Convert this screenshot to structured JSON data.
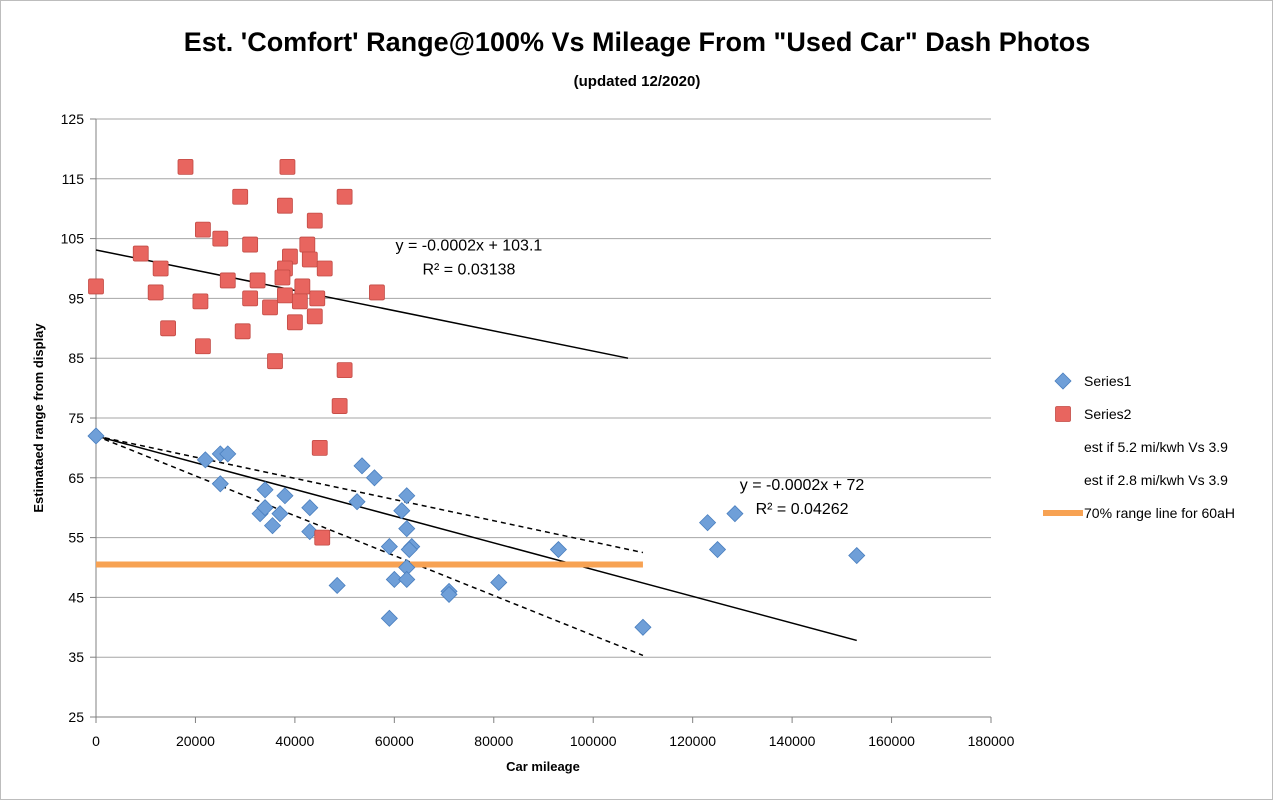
{
  "chart_data": {
    "type": "scatter",
    "title": "Est. 'Comfort' Range@100% Vs Mileage From \"Used Car\" Dash Photos",
    "subtitle": "(updated 12/2020)",
    "xlabel": "Car mileage",
    "ylabel": "Estimataed range from display",
    "xlim": [
      0,
      180000
    ],
    "ylim": [
      25,
      125
    ],
    "x_ticks": [
      0,
      20000,
      40000,
      60000,
      80000,
      100000,
      120000,
      140000,
      160000,
      180000
    ],
    "x_tick_labels": [
      "0",
      "20000",
      "40000",
      "60000",
      "80000",
      "100000",
      "120000",
      "140000",
      "160000",
      "180000"
    ],
    "y_ticks": [
      25,
      35,
      45,
      55,
      65,
      75,
      85,
      95,
      105,
      115,
      125
    ],
    "y_tick_labels": [
      "25",
      "35",
      "45",
      "55",
      "65",
      "75",
      "85",
      "95",
      "105",
      "115",
      "125"
    ],
    "grid": "horizontal",
    "legend_position": "right",
    "series": [
      {
        "name": "Series1",
        "marker": "diamond",
        "color": "#6f9fd8",
        "points": [
          [
            0,
            72
          ],
          [
            22000,
            68
          ],
          [
            25000,
            69
          ],
          [
            26500,
            69
          ],
          [
            25000,
            64
          ],
          [
            34000,
            63
          ],
          [
            38000,
            62
          ],
          [
            33000,
            59
          ],
          [
            34000,
            60
          ],
          [
            37000,
            59
          ],
          [
            35500,
            57
          ],
          [
            43000,
            60
          ],
          [
            43000,
            56
          ],
          [
            53500,
            67
          ],
          [
            56000,
            65
          ],
          [
            52500,
            61
          ],
          [
            62500,
            62
          ],
          [
            61500,
            59.5
          ],
          [
            62500,
            56.5
          ],
          [
            63500,
            53.5
          ],
          [
            63000,
            53
          ],
          [
            59000,
            53.5
          ],
          [
            62500,
            50
          ],
          [
            60000,
            48
          ],
          [
            62500,
            48
          ],
          [
            48500,
            47
          ],
          [
            59000,
            41.5
          ],
          [
            71000,
            46
          ],
          [
            71000,
            45.5
          ],
          [
            81000,
            47.5
          ],
          [
            93000,
            53
          ],
          [
            110000,
            40
          ],
          [
            123000,
            57.5
          ],
          [
            125000,
            53
          ],
          [
            128500,
            59
          ],
          [
            153000,
            52
          ]
        ]
      },
      {
        "name": "Series2",
        "marker": "square",
        "color": "#e8655f",
        "points": [
          [
            0,
            97
          ],
          [
            18000,
            117
          ],
          [
            38500,
            117
          ],
          [
            29000,
            112
          ],
          [
            50000,
            112
          ],
          [
            38000,
            110.5
          ],
          [
            44000,
            108
          ],
          [
            21500,
            106.5
          ],
          [
            25000,
            105
          ],
          [
            31000,
            104
          ],
          [
            42500,
            104
          ],
          [
            9000,
            102.5
          ],
          [
            39000,
            102
          ],
          [
            43000,
            101.5
          ],
          [
            13000,
            100
          ],
          [
            38000,
            100
          ],
          [
            46000,
            100
          ],
          [
            37500,
            98.5
          ],
          [
            26500,
            98
          ],
          [
            32500,
            98
          ],
          [
            41500,
            97
          ],
          [
            12000,
            96
          ],
          [
            56500,
            96
          ],
          [
            21000,
            94.5
          ],
          [
            31000,
            95
          ],
          [
            38000,
            95.5
          ],
          [
            41000,
            94.5
          ],
          [
            44500,
            95
          ],
          [
            35000,
            93.5
          ],
          [
            44000,
            92
          ],
          [
            40000,
            91
          ],
          [
            14500,
            90
          ],
          [
            29500,
            89.5
          ],
          [
            21500,
            87
          ],
          [
            36000,
            84.5
          ],
          [
            50000,
            83
          ],
          [
            49000,
            77
          ],
          [
            45000,
            70
          ],
          [
            45500,
            55
          ]
        ]
      }
    ],
    "trendlines": [
      {
        "series": "Series2",
        "style": "solid",
        "from": [
          0,
          103.1
        ],
        "to": [
          107000,
          85
        ]
      },
      {
        "series": "Series1",
        "style": "solid",
        "from": [
          0,
          72
        ],
        "to": [
          153000,
          37.8
        ]
      },
      {
        "name": "est if 5.2 mi/kwh Vs 3.9",
        "style": "dashed",
        "from": [
          0,
          72
        ],
        "to": [
          110000,
          52.5
        ]
      },
      {
        "name": "est if 2.8 mi/kwh Vs 3.9",
        "style": "dashed",
        "from": [
          0,
          72
        ],
        "to": [
          110000,
          35.3
        ]
      },
      {
        "name": "70% range line for 60aH",
        "style": "thick",
        "color": "#f7a253",
        "from": [
          0,
          50.5
        ],
        "to": [
          110000,
          50.5
        ]
      }
    ],
    "annotations": [
      {
        "line1": "y = -0.0002x + 103.1",
        "line2": "R² = 0.03138",
        "at": [
          75000,
          103
        ]
      },
      {
        "line1": "y = -0.0002x + 72",
        "line2": "R² = 0.04262",
        "at": [
          142000,
          63
        ]
      }
    ],
    "legend": [
      {
        "label": "Series1",
        "marker": "diamond",
        "color": "#6f9fd8"
      },
      {
        "label": "Series2",
        "marker": "square",
        "color": "#e8655f"
      },
      {
        "label": "est if 5.2 mi/kwh Vs 3.9",
        "marker": "none",
        "color": ""
      },
      {
        "label": "est if 2.8 mi/kwh Vs 3.9",
        "marker": "none",
        "color": ""
      },
      {
        "label": "70% range line for 60aH",
        "marker": "thick-line",
        "color": "#f7a253"
      }
    ]
  }
}
